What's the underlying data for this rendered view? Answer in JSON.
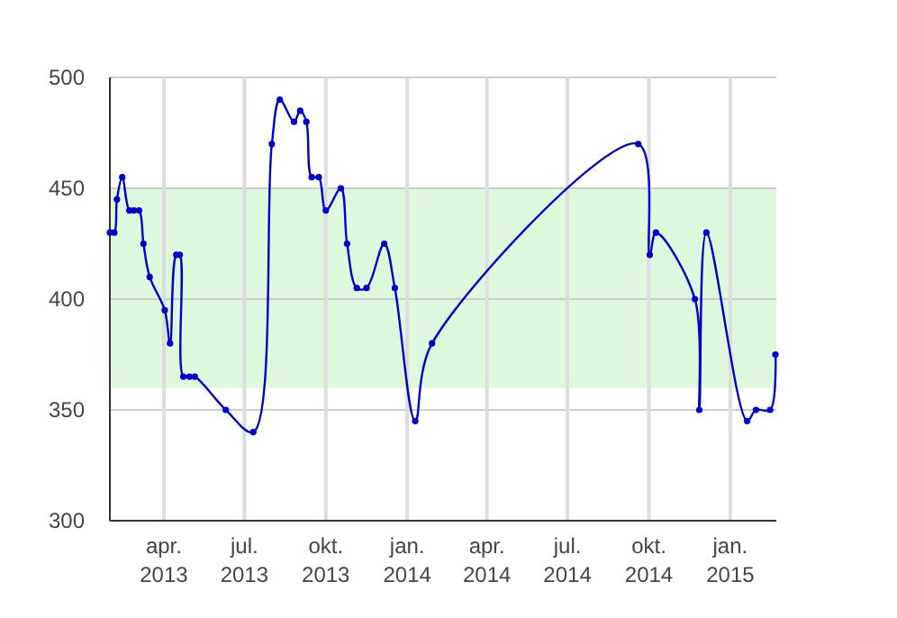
{
  "chart_data": {
    "type": "line",
    "x": [
      "2013-01-30",
      "2013-02-04",
      "2013-02-07",
      "2013-02-13",
      "2013-02-21",
      "2013-02-26",
      "2013-03-04",
      "2013-03-09",
      "2013-03-16",
      "2013-04-02",
      "2013-04-08",
      "2013-04-15",
      "2013-04-19",
      "2013-04-23",
      "2013-04-30",
      "2013-05-06",
      "2013-06-10",
      "2013-07-11",
      "2013-08-01",
      "2013-08-10",
      "2013-08-26",
      "2013-09-02",
      "2013-09-09",
      "2013-09-15",
      "2013-09-23",
      "2013-10-01",
      "2013-10-18",
      "2013-10-25",
      "2013-11-05",
      "2013-11-16",
      "2013-12-06",
      "2013-12-18",
      "2014-01-10",
      "2014-01-29",
      "2014-09-19",
      "2014-10-02",
      "2014-10-09",
      "2014-11-22",
      "2014-11-27",
      "2014-12-05",
      "2015-01-20",
      "2015-01-30",
      "2015-02-15",
      "2015-02-21"
    ],
    "series": [
      {
        "color": "#0000cc",
        "values": [
          430,
          430,
          445,
          455,
          440,
          440,
          440,
          425,
          410,
          395,
          380,
          420,
          420,
          365,
          365,
          365,
          350,
          340,
          470,
          490,
          480,
          485,
          480,
          455,
          455,
          440,
          450,
          425,
          405,
          405,
          425,
          405,
          345,
          380,
          470,
          420,
          430,
          400,
          350,
          430,
          345,
          350,
          350,
          375
        ]
      }
    ],
    "xlim": [
      "2013-01-30",
      "2015-02-22"
    ],
    "xticks": [
      {
        "value": "2013-04-01",
        "label": "apr. 2013"
      },
      {
        "value": "2013-07-01",
        "label": "jul. 2013"
      },
      {
        "value": "2013-10-01",
        "label": "okt. 2013"
      },
      {
        "value": "2014-01-01",
        "label": "jan. 2014"
      },
      {
        "value": "2014-04-01",
        "label": "apr. 2014"
      },
      {
        "value": "2014-07-01",
        "label": "jul. 2014"
      },
      {
        "value": "2014-10-01",
        "label": "okt. 2014"
      },
      {
        "value": "2015-01-01",
        "label": "jan. 2015"
      }
    ],
    "ylim": [
      300,
      500
    ],
    "yticks": [
      300,
      350,
      400,
      450,
      500
    ],
    "bands": [
      {
        "axis": "y",
        "from": 360,
        "to": 450,
        "color": "#ddf8dd"
      }
    ],
    "grid": true,
    "marker": "circle",
    "line_style": "solid"
  }
}
